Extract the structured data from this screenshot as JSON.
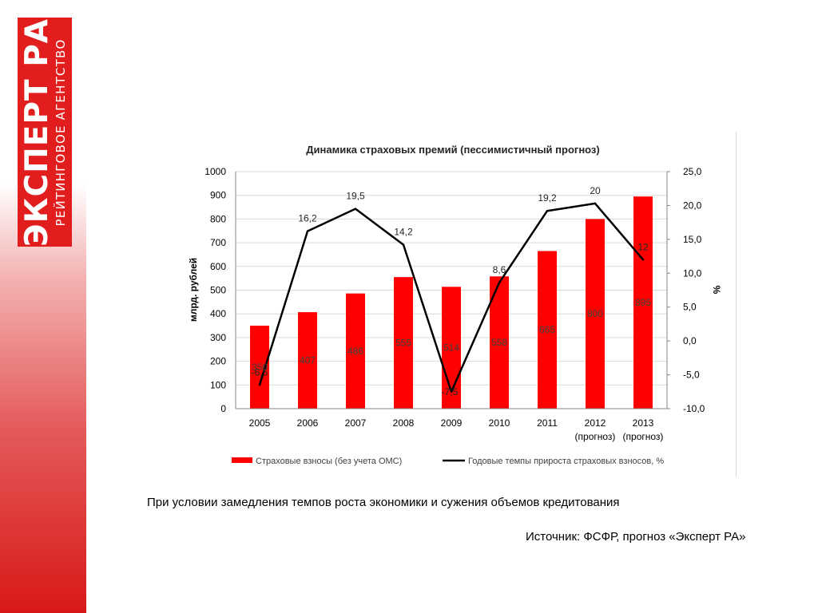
{
  "logo": {
    "main_text": "ЭКСПЕРТ РА",
    "sub_text": "РЕЙТИНГОВОЕ АГЕНТСТВО",
    "brand_color": "#e11d1d"
  },
  "chart_data": {
    "type": "bar+line",
    "title": "Динамика страховых премий (пессимистичный прогноз)",
    "categories": [
      "2005",
      "2006",
      "2007",
      "2008",
      "2009",
      "2010",
      "2011",
      "2012",
      "2013"
    ],
    "category_sublabels": [
      "",
      "",
      "",
      "",
      "",
      "",
      "",
      "(прогноз)",
      "(прогноз)"
    ],
    "ylabel_left": "млрд. рублей",
    "ylabel_right": "%",
    "ylim_left": [
      0,
      1000
    ],
    "yticks_left": [
      "0",
      "100",
      "200",
      "300",
      "400",
      "500",
      "600",
      "700",
      "800",
      "900",
      "1000"
    ],
    "ylim_right": [
      -10,
      25
    ],
    "yticks_right": [
      "-10,0",
      "-5,0",
      "0,0",
      "5,0",
      "10,0",
      "15,0",
      "20,0",
      "25,0"
    ],
    "grid": true,
    "legend_position": "bottom",
    "bar_series": {
      "name": "Страховые взносы (без учета ОМС)",
      "color": "#ff0000",
      "values": [
        350,
        407,
        486,
        555,
        514,
        558,
        665,
        800,
        895
      ],
      "labels": [
        "350",
        "407",
        "486",
        "555",
        "514",
        "558",
        "665",
        "800",
        "895"
      ]
    },
    "line_series": {
      "name": "Годовые темпы прироста страховых взносов, %",
      "color": "#000000",
      "values": [
        -6.5,
        16.2,
        19.5,
        14.2,
        -7.5,
        8.6,
        19.2,
        20.3,
        12.0
      ],
      "labels": [
        "-6,5",
        "16,2",
        "19,5",
        "14,2",
        "-7,5",
        "8,6",
        "19,2",
        "20",
        "12"
      ]
    }
  },
  "caption": "При условии замедления темпов роста экономики и сужения объемов кредитования",
  "source": "Источник: ФСФР, прогноз «Эксперт РА»"
}
